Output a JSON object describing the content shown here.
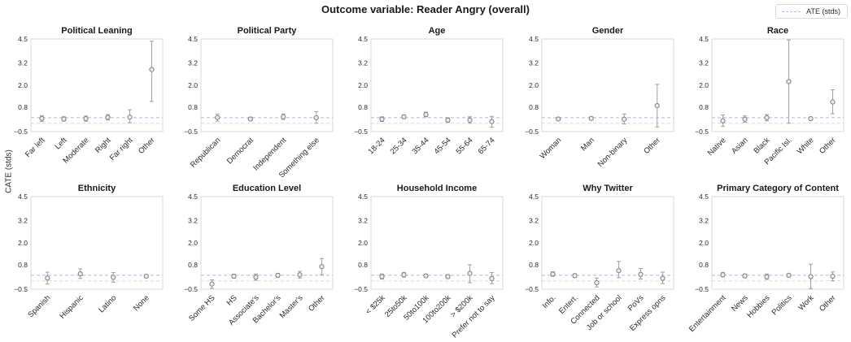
{
  "figure": {
    "title": "Outcome variable: Reader Angry (overall)",
    "y_axis_label": "CATE (stds)",
    "legend": {
      "label": "ATE (stds)"
    }
  },
  "style": {
    "ate_line_color": "#a2bce8",
    "baseline_line_color": "#d8d8d8",
    "marker_face_color": "#ececec",
    "marker_edge_color": "#7f7f7f",
    "errorbar_color": "#a6a6a6",
    "spine_color": "#d9d9d9",
    "text_color": "#2b2b2b",
    "title_color": "#1a1a1a"
  },
  "chart_data": {
    "type": "scatter",
    "ylim": [
      -0.5,
      4.5
    ],
    "grid": false,
    "legend_position": "top-right",
    "y_ticks": [
      {
        "value": 4.5,
        "label": "4.5"
      },
      {
        "value": 3.2,
        "label": "3.2"
      },
      {
        "value": 2.0,
        "label": "2.0"
      },
      {
        "value": 0.8,
        "label": "0.8"
      },
      {
        "value": -0.5,
        "label": "−0.5"
      }
    ],
    "reference_lines": [
      {
        "name": "ATE",
        "value": 0.25,
        "style": "dashed",
        "color": "#a2bce8"
      },
      {
        "name": "baseline",
        "value": -0.05,
        "style": "dashed",
        "color": "#d8d8d8"
      }
    ],
    "subplots": [
      {
        "title": "Political Leaning",
        "categories": [
          "Far left",
          "Left",
          "Moderate",
          "Right",
          "Far right",
          "Other"
        ],
        "values": [
          0.21,
          0.18,
          0.2,
          0.27,
          0.28,
          2.85
        ],
        "ci_low": [
          0.05,
          0.07,
          0.06,
          0.13,
          -0.02,
          1.13
        ],
        "ci_high": [
          0.36,
          0.3,
          0.34,
          0.42,
          0.68,
          4.38
        ]
      },
      {
        "title": "Political Party",
        "categories": [
          "Republican",
          "Democrat",
          "Independent",
          "Something else"
        ],
        "values": [
          0.26,
          0.18,
          0.3,
          0.25
        ],
        "ci_low": [
          0.06,
          0.1,
          0.15,
          -0.05
        ],
        "ci_high": [
          0.45,
          0.27,
          0.45,
          0.58
        ]
      },
      {
        "title": "Age",
        "categories": [
          "18-24",
          "25-34",
          "35-44",
          "45-54",
          "55-64",
          "65-74"
        ],
        "values": [
          0.17,
          0.3,
          0.42,
          0.12,
          0.12,
          0.04
        ],
        "ci_low": [
          0.05,
          0.2,
          0.3,
          0.0,
          -0.05,
          -0.26
        ],
        "ci_high": [
          0.3,
          0.4,
          0.55,
          0.25,
          0.3,
          0.32
        ]
      },
      {
        "title": "Gender",
        "categories": [
          "Woman",
          "Man",
          "Non-binary",
          "Other"
        ],
        "values": [
          0.18,
          0.21,
          0.17,
          0.9
        ],
        "ci_low": [
          0.1,
          0.13,
          -0.08,
          -0.25
        ],
        "ci_high": [
          0.26,
          0.29,
          0.45,
          2.05
        ]
      },
      {
        "title": "Race",
        "categories": [
          "Native",
          "Asian",
          "Black",
          "Pacific Isl.",
          "White",
          "Other"
        ],
        "values": [
          0.08,
          0.17,
          0.25,
          2.2,
          0.2,
          1.1
        ],
        "ci_low": [
          -0.22,
          0.0,
          0.08,
          -0.05,
          0.13,
          0.46
        ],
        "ci_high": [
          0.4,
          0.35,
          0.42,
          4.45,
          0.27,
          1.76
        ]
      },
      {
        "title": "Ethnicity",
        "categories": [
          "Spanish",
          "Hispanic",
          "Latino",
          "None"
        ],
        "values": [
          0.1,
          0.33,
          0.14,
          0.2
        ],
        "ci_low": [
          -0.22,
          0.08,
          -0.12,
          0.13
        ],
        "ci_high": [
          0.42,
          0.6,
          0.4,
          0.28
        ]
      },
      {
        "title": "Education Level",
        "categories": [
          "Some HS",
          "HS",
          "Associate's",
          "Bachelor's",
          "Master's",
          "Other"
        ],
        "values": [
          -0.22,
          0.2,
          0.15,
          0.25,
          0.28,
          0.72
        ],
        "ci_low": [
          -0.45,
          0.1,
          -0.02,
          0.15,
          0.1,
          0.28
        ],
        "ci_high": [
          0.0,
          0.31,
          0.32,
          0.35,
          0.46,
          1.15
        ]
      },
      {
        "title": "Household Income",
        "categories": [
          "< $25k",
          "25to50k",
          "50to100k",
          "100to200k",
          "> $200k",
          "Prefer not to say"
        ],
        "values": [
          0.18,
          0.28,
          0.22,
          0.18,
          0.35,
          0.07
        ],
        "ci_low": [
          0.05,
          0.15,
          0.13,
          0.08,
          -0.15,
          -0.2
        ],
        "ci_high": [
          0.32,
          0.4,
          0.31,
          0.28,
          0.82,
          0.4
        ]
      },
      {
        "title": "Why Twitter",
        "categories": [
          "Info.",
          "Entert.",
          "Connected",
          "Job or school",
          "PoVs",
          "Express opns"
        ],
        "values": [
          0.32,
          0.23,
          -0.15,
          0.5,
          0.3,
          0.09
        ],
        "ci_low": [
          0.2,
          0.13,
          -0.38,
          0.12,
          0.05,
          -0.2
        ],
        "ci_high": [
          0.44,
          0.33,
          0.1,
          1.0,
          0.62,
          0.42
        ]
      },
      {
        "title": "Primary Category of Content",
        "categories": [
          "Entertainment",
          "News",
          "Hobbies",
          "Politics",
          "Work",
          "Other"
        ],
        "values": [
          0.28,
          0.22,
          0.17,
          0.25,
          0.18,
          0.2
        ],
        "ci_low": [
          0.17,
          0.12,
          0.03,
          0.17,
          -0.47,
          -0.05
        ],
        "ci_high": [
          0.4,
          0.32,
          0.32,
          0.33,
          0.85,
          0.43
        ]
      }
    ]
  }
}
